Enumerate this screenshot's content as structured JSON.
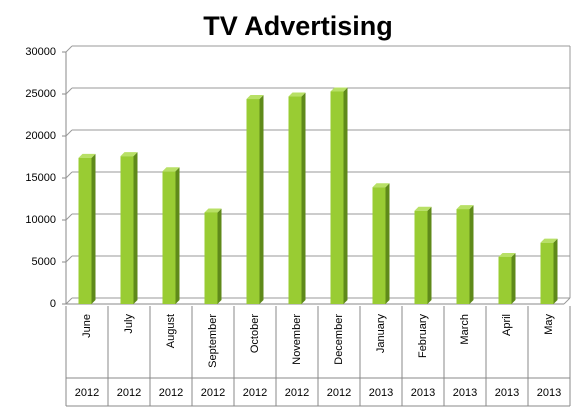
{
  "chart_data": {
    "type": "bar",
    "title": "TV Advertising",
    "categories": [
      "June",
      "July",
      "August",
      "September",
      "October",
      "November",
      "December",
      "January",
      "February",
      "March",
      "April",
      "May"
    ],
    "year_labels": [
      "2012",
      "2012",
      "2012",
      "2012",
      "2012",
      "2012",
      "2012",
      "2013",
      "2013",
      "2013",
      "2013",
      "2013"
    ],
    "values": [
      17400,
      17600,
      15800,
      10900,
      24400,
      24700,
      25300,
      13900,
      11100,
      11300,
      5600,
      7300
    ],
    "color": "#99cc33",
    "ylim": [
      0,
      30000
    ],
    "yticks": [
      0,
      5000,
      10000,
      15000,
      20000,
      25000,
      30000
    ],
    "grid": true
  }
}
